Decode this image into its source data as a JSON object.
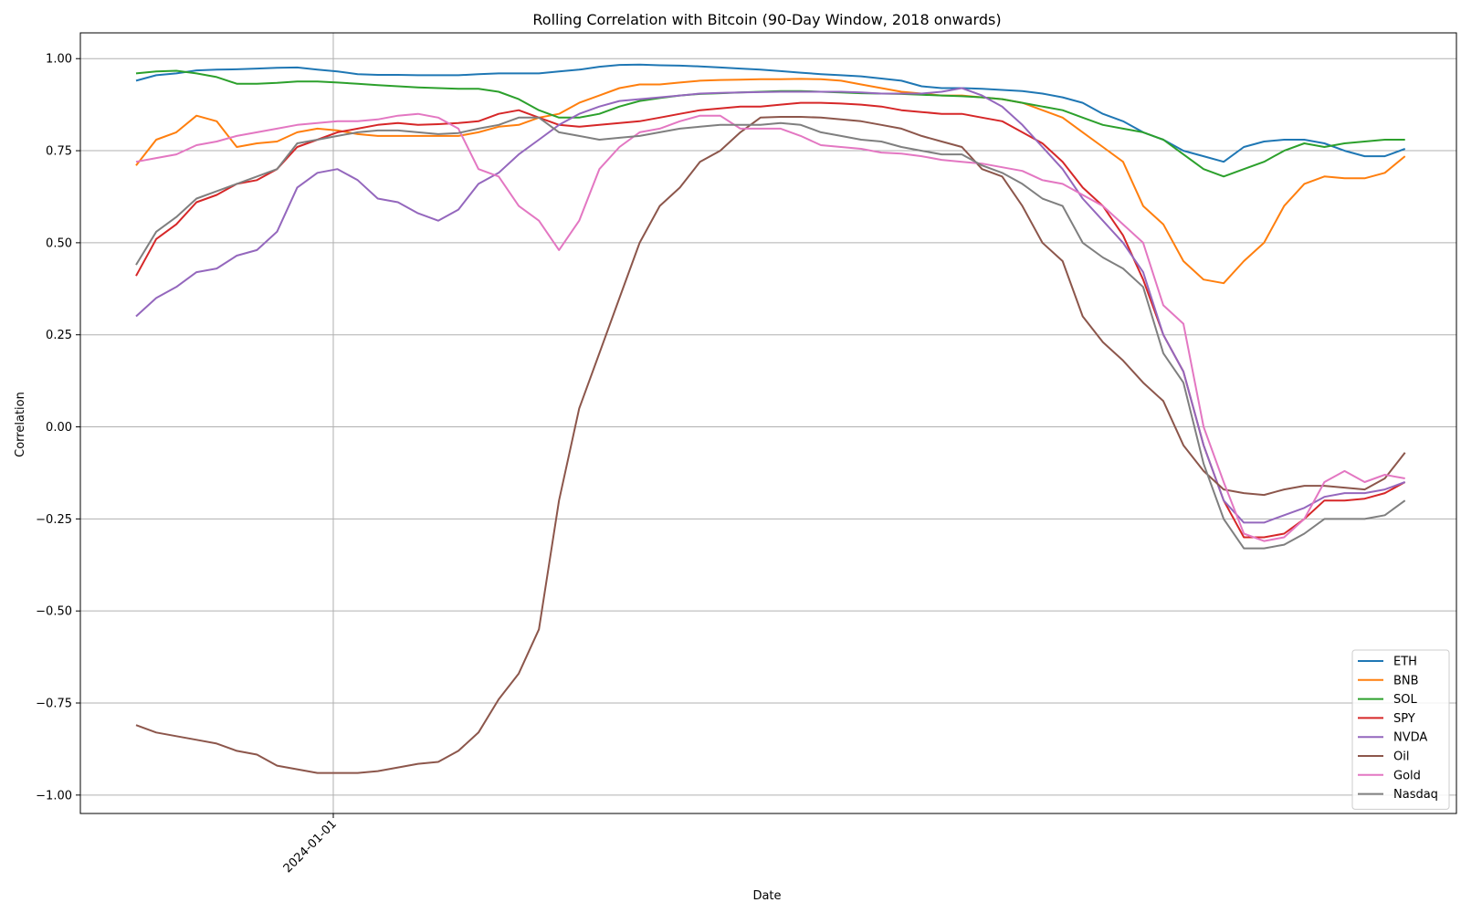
{
  "chart_data": {
    "type": "line",
    "title": "Rolling Correlation with Bitcoin (90-Day Window, 2018 onwards)",
    "xlabel": "Date",
    "ylabel": "Correlation",
    "ylim": [
      -1.05,
      1.07
    ],
    "yticks": [
      -1.0,
      -0.75,
      -0.5,
      -0.25,
      0.0,
      0.25,
      0.5,
      0.75,
      1.0
    ],
    "ytick_labels": [
      "−1.00",
      "−0.75",
      "−0.50",
      "−0.25",
      "0.00",
      "0.25",
      "0.50",
      "0.75",
      "1.00"
    ],
    "x_start": "2023-10-01",
    "x_end": "2025-05-15",
    "xlim": [
      "2023-09-05",
      "2025-06-08"
    ],
    "xticks": [
      "2024-01-01"
    ],
    "xtick_labels": [
      "2024-01-01"
    ],
    "grid": true,
    "legend_position": "lower-right",
    "series": [
      {
        "name": "ETH",
        "color": "#1f77b4",
        "values": [
          0.94,
          0.955,
          0.96,
          0.968,
          0.97,
          0.971,
          0.973,
          0.975,
          0.976,
          0.97,
          0.965,
          0.958,
          0.956,
          0.956,
          0.955,
          0.955,
          0.955,
          0.958,
          0.96,
          0.96,
          0.96,
          0.965,
          0.97,
          0.978,
          0.983,
          0.984,
          0.982,
          0.981,
          0.979,
          0.976,
          0.973,
          0.97,
          0.966,
          0.962,
          0.958,
          0.955,
          0.952,
          0.946,
          0.94,
          0.925,
          0.92,
          0.92,
          0.918,
          0.915,
          0.912,
          0.905,
          0.895,
          0.88,
          0.85,
          0.83,
          0.8,
          0.78,
          0.75,
          0.735,
          0.72,
          0.76,
          0.775,
          0.78,
          0.78,
          0.77,
          0.75,
          0.735,
          0.735,
          0.755
        ]
      },
      {
        "name": "BNB",
        "color": "#ff7f0e",
        "values": [
          0.71,
          0.78,
          0.8,
          0.845,
          0.83,
          0.76,
          0.77,
          0.775,
          0.8,
          0.81,
          0.805,
          0.795,
          0.79,
          0.79,
          0.79,
          0.79,
          0.79,
          0.8,
          0.815,
          0.82,
          0.84,
          0.85,
          0.88,
          0.9,
          0.92,
          0.93,
          0.93,
          0.935,
          0.94,
          0.942,
          0.943,
          0.944,
          0.944,
          0.945,
          0.944,
          0.94,
          0.93,
          0.92,
          0.91,
          0.905,
          0.9,
          0.9,
          0.895,
          0.89,
          0.88,
          0.86,
          0.84,
          0.8,
          0.76,
          0.72,
          0.6,
          0.55,
          0.45,
          0.4,
          0.39,
          0.45,
          0.5,
          0.6,
          0.66,
          0.68,
          0.675,
          0.675,
          0.69,
          0.735
        ]
      },
      {
        "name": "SOL",
        "color": "#2ca02c",
        "values": [
          0.96,
          0.965,
          0.967,
          0.96,
          0.95,
          0.932,
          0.932,
          0.934,
          0.938,
          0.938,
          0.935,
          0.932,
          0.928,
          0.925,
          0.922,
          0.92,
          0.918,
          0.918,
          0.91,
          0.89,
          0.86,
          0.84,
          0.84,
          0.85,
          0.87,
          0.885,
          0.893,
          0.9,
          0.904,
          0.906,
          0.908,
          0.91,
          0.912,
          0.912,
          0.91,
          0.908,
          0.906,
          0.905,
          0.904,
          0.902,
          0.9,
          0.898,
          0.895,
          0.89,
          0.88,
          0.87,
          0.86,
          0.84,
          0.82,
          0.81,
          0.8,
          0.78,
          0.74,
          0.7,
          0.68,
          0.7,
          0.72,
          0.75,
          0.77,
          0.76,
          0.77,
          0.775,
          0.78,
          0.78
        ]
      },
      {
        "name": "SPY",
        "color": "#d62728",
        "values": [
          0.41,
          0.51,
          0.55,
          0.61,
          0.63,
          0.66,
          0.67,
          0.7,
          0.76,
          0.78,
          0.8,
          0.81,
          0.82,
          0.825,
          0.82,
          0.822,
          0.825,
          0.83,
          0.85,
          0.86,
          0.84,
          0.82,
          0.815,
          0.82,
          0.825,
          0.83,
          0.84,
          0.85,
          0.86,
          0.865,
          0.87,
          0.87,
          0.875,
          0.88,
          0.88,
          0.878,
          0.875,
          0.87,
          0.86,
          0.855,
          0.85,
          0.85,
          0.84,
          0.83,
          0.8,
          0.77,
          0.72,
          0.65,
          0.6,
          0.52,
          0.4,
          0.25,
          0.15,
          -0.05,
          -0.2,
          -0.3,
          -0.3,
          -0.29,
          -0.25,
          -0.2,
          -0.2,
          -0.195,
          -0.18,
          -0.15
        ]
      },
      {
        "name": "NVDA",
        "color": "#9467bd",
        "values": [
          0.3,
          0.35,
          0.38,
          0.42,
          0.43,
          0.465,
          0.48,
          0.53,
          0.65,
          0.69,
          0.7,
          0.67,
          0.62,
          0.61,
          0.58,
          0.56,
          0.59,
          0.66,
          0.69,
          0.74,
          0.78,
          0.82,
          0.85,
          0.87,
          0.885,
          0.89,
          0.895,
          0.9,
          0.905,
          0.907,
          0.908,
          0.909,
          0.91,
          0.91,
          0.91,
          0.91,
          0.908,
          0.905,
          0.905,
          0.905,
          0.91,
          0.92,
          0.9,
          0.87,
          0.82,
          0.76,
          0.7,
          0.62,
          0.56,
          0.5,
          0.42,
          0.25,
          0.15,
          -0.05,
          -0.2,
          -0.26,
          -0.26,
          -0.24,
          -0.22,
          -0.19,
          -0.18,
          -0.18,
          -0.17,
          -0.15
        ]
      },
      {
        "name": "Oil",
        "color": "#8c564b",
        "values": [
          -0.81,
          -0.83,
          -0.84,
          -0.85,
          -0.86,
          -0.88,
          -0.89,
          -0.92,
          -0.93,
          -0.94,
          -0.94,
          -0.94,
          -0.935,
          -0.925,
          -0.915,
          -0.91,
          -0.88,
          -0.83,
          -0.74,
          -0.67,
          -0.55,
          -0.2,
          0.05,
          0.2,
          0.35,
          0.5,
          0.6,
          0.65,
          0.72,
          0.75,
          0.8,
          0.84,
          0.842,
          0.842,
          0.84,
          0.835,
          0.83,
          0.82,
          0.81,
          0.79,
          0.775,
          0.76,
          0.7,
          0.68,
          0.6,
          0.5,
          0.45,
          0.3,
          0.23,
          0.18,
          0.12,
          0.07,
          -0.05,
          -0.12,
          -0.17,
          -0.18,
          -0.185,
          -0.17,
          -0.16,
          -0.16,
          -0.165,
          -0.17,
          -0.14,
          -0.07
        ]
      },
      {
        "name": "Gold",
        "color": "#e377c2",
        "values": [
          0.72,
          0.73,
          0.74,
          0.765,
          0.775,
          0.79,
          0.8,
          0.81,
          0.82,
          0.825,
          0.83,
          0.83,
          0.835,
          0.845,
          0.85,
          0.84,
          0.81,
          0.7,
          0.68,
          0.6,
          0.56,
          0.48,
          0.56,
          0.7,
          0.76,
          0.8,
          0.81,
          0.83,
          0.845,
          0.845,
          0.81,
          0.81,
          0.81,
          0.79,
          0.765,
          0.76,
          0.755,
          0.745,
          0.742,
          0.735,
          0.725,
          0.72,
          0.715,
          0.705,
          0.695,
          0.67,
          0.66,
          0.63,
          0.6,
          0.55,
          0.5,
          0.33,
          0.28,
          0.0,
          -0.15,
          -0.29,
          -0.31,
          -0.3,
          -0.25,
          -0.15,
          -0.12,
          -0.15,
          -0.13,
          -0.14
        ]
      },
      {
        "name": "Nasdaq",
        "color": "#7f7f7f",
        "values": [
          0.44,
          0.53,
          0.57,
          0.62,
          0.64,
          0.66,
          0.68,
          0.7,
          0.77,
          0.78,
          0.79,
          0.8,
          0.805,
          0.805,
          0.8,
          0.795,
          0.798,
          0.81,
          0.82,
          0.84,
          0.84,
          0.8,
          0.79,
          0.78,
          0.785,
          0.79,
          0.8,
          0.81,
          0.815,
          0.82,
          0.82,
          0.82,
          0.825,
          0.82,
          0.8,
          0.79,
          0.78,
          0.775,
          0.76,
          0.75,
          0.74,
          0.74,
          0.71,
          0.69,
          0.66,
          0.62,
          0.6,
          0.5,
          0.46,
          0.43,
          0.38,
          0.2,
          0.12,
          -0.1,
          -0.25,
          -0.33,
          -0.33,
          -0.32,
          -0.29,
          -0.25,
          -0.25,
          -0.25,
          -0.24,
          -0.2
        ]
      }
    ]
  }
}
